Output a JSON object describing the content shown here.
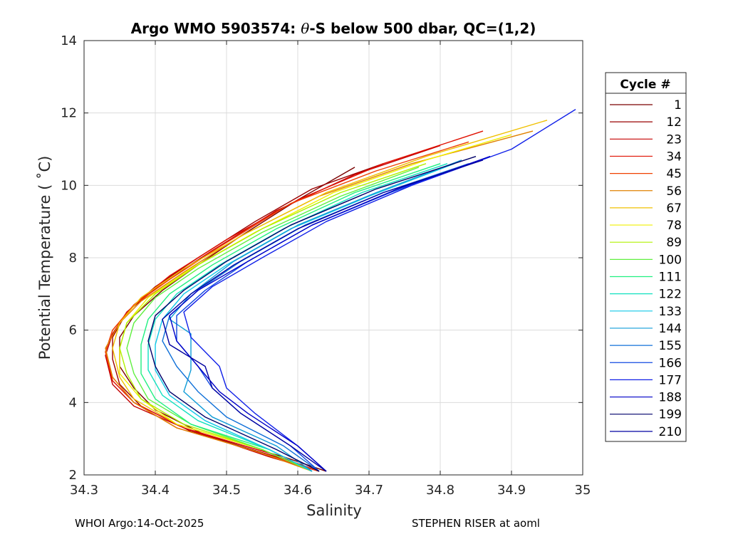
{
  "chart_data": {
    "type": "line",
    "title_prefix": "Argo WMO 5903574: ",
    "title_symbol": "θ",
    "title_suffix": "-S below 500 dbar,  QC=(1,2)",
    "xlabel": "Salinity",
    "ylabel": "Potential Temperature ( ˚C)",
    "xlim": [
      34.3,
      35
    ],
    "ylim": [
      2,
      14
    ],
    "xticks": [
      "34.3",
      "34.4",
      "34.5",
      "34.6",
      "34.7",
      "34.8",
      "34.9",
      "35"
    ],
    "yticks": [
      "2",
      "4",
      "6",
      "8",
      "10",
      "12",
      "14"
    ],
    "grid": true,
    "legend_title": "Cycle #",
    "legend_position": "right-outside",
    "series": [
      {
        "name": "1",
        "color": "#7a0000",
        "points": [
          [
            34.64,
            2.1
          ],
          [
            34.58,
            2.5
          ],
          [
            34.47,
            3.1
          ],
          [
            34.4,
            3.8
          ],
          [
            34.37,
            4.4
          ],
          [
            34.35,
            5.0
          ],
          [
            34.35,
            5.8
          ],
          [
            34.37,
            6.4
          ],
          [
            34.41,
            7.1
          ],
          [
            34.46,
            7.8
          ],
          [
            34.52,
            8.6
          ],
          [
            34.6,
            9.6
          ],
          [
            34.68,
            10.5
          ]
        ]
      },
      {
        "name": "12",
        "color": "#9a0000",
        "points": [
          [
            34.63,
            2.1
          ],
          [
            34.57,
            2.5
          ],
          [
            34.45,
            3.2
          ],
          [
            34.38,
            3.9
          ],
          [
            34.35,
            4.5
          ],
          [
            34.34,
            5.2
          ],
          [
            34.34,
            5.8
          ],
          [
            34.36,
            6.5
          ],
          [
            34.4,
            7.2
          ],
          [
            34.46,
            8.0
          ],
          [
            34.54,
            9.0
          ],
          [
            34.62,
            9.9
          ],
          [
            34.72,
            10.6
          ]
        ]
      },
      {
        "name": "23",
        "color": "#c40000",
        "points": [
          [
            34.63,
            2.1
          ],
          [
            34.56,
            2.5
          ],
          [
            34.44,
            3.3
          ],
          [
            34.37,
            3.9
          ],
          [
            34.34,
            4.5
          ],
          [
            34.33,
            5.3
          ],
          [
            34.34,
            5.9
          ],
          [
            34.36,
            6.5
          ],
          [
            34.41,
            7.3
          ],
          [
            34.48,
            8.2
          ],
          [
            34.57,
            9.3
          ],
          [
            34.68,
            10.3
          ],
          [
            34.8,
            11.1
          ]
        ]
      },
      {
        "name": "34",
        "color": "#e01000",
        "points": [
          [
            34.63,
            2.1
          ],
          [
            34.56,
            2.6
          ],
          [
            34.44,
            3.3
          ],
          [
            34.37,
            4.0
          ],
          [
            34.34,
            4.6
          ],
          [
            34.33,
            5.4
          ],
          [
            34.34,
            6.0
          ],
          [
            34.37,
            6.7
          ],
          [
            34.42,
            7.5
          ],
          [
            34.5,
            8.5
          ],
          [
            34.6,
            9.6
          ],
          [
            34.72,
            10.6
          ],
          [
            34.86,
            11.5
          ]
        ]
      },
      {
        "name": "45",
        "color": "#f04000",
        "points": [
          [
            34.63,
            2.1
          ],
          [
            34.55,
            2.6
          ],
          [
            34.43,
            3.3
          ],
          [
            34.37,
            4.0
          ],
          [
            34.34,
            4.7
          ],
          [
            34.33,
            5.4
          ],
          [
            34.34,
            6.0
          ],
          [
            34.37,
            6.7
          ],
          [
            34.42,
            7.4
          ],
          [
            34.49,
            8.3
          ],
          [
            34.59,
            9.5
          ],
          [
            34.71,
            10.4
          ],
          [
            34.84,
            11.2
          ]
        ]
      },
      {
        "name": "56",
        "color": "#e08000",
        "points": [
          [
            34.62,
            2.1
          ],
          [
            34.55,
            2.6
          ],
          [
            34.43,
            3.3
          ],
          [
            34.37,
            4.0
          ],
          [
            34.34,
            4.7
          ],
          [
            34.33,
            5.5
          ],
          [
            34.35,
            6.2
          ],
          [
            34.38,
            6.8
          ],
          [
            34.44,
            7.6
          ],
          [
            34.52,
            8.6
          ],
          [
            34.63,
            9.7
          ],
          [
            34.76,
            10.6
          ],
          [
            34.93,
            11.5
          ]
        ]
      },
      {
        "name": "67",
        "color": "#f0c000",
        "points": [
          [
            34.62,
            2.1
          ],
          [
            34.55,
            2.7
          ],
          [
            34.43,
            3.4
          ],
          [
            34.37,
            4.1
          ],
          [
            34.35,
            4.7
          ],
          [
            34.34,
            5.5
          ],
          [
            34.35,
            6.2
          ],
          [
            34.38,
            6.9
          ],
          [
            34.44,
            7.7
          ],
          [
            34.53,
            8.7
          ],
          [
            34.64,
            9.8
          ],
          [
            34.78,
            10.8
          ],
          [
            34.95,
            11.8
          ]
        ]
      },
      {
        "name": "78",
        "color": "#f0f000",
        "points": [
          [
            34.62,
            2.1
          ],
          [
            34.55,
            2.7
          ],
          [
            34.43,
            3.4
          ],
          [
            34.38,
            4.1
          ],
          [
            34.35,
            4.8
          ],
          [
            34.35,
            5.5
          ],
          [
            34.36,
            6.2
          ],
          [
            34.39,
            6.9
          ],
          [
            34.45,
            7.7
          ],
          [
            34.54,
            8.7
          ],
          [
            34.65,
            9.8
          ],
          [
            34.78,
            10.7
          ],
          [
            34.9,
            11.4
          ]
        ]
      },
      {
        "name": "89",
        "color": "#b0f000",
        "points": [
          [
            34.62,
            2.1
          ],
          [
            34.55,
            2.7
          ],
          [
            34.44,
            3.4
          ],
          [
            34.38,
            4.1
          ],
          [
            34.36,
            4.8
          ],
          [
            34.35,
            5.5
          ],
          [
            34.36,
            6.2
          ],
          [
            34.4,
            7.0
          ],
          [
            34.46,
            7.8
          ],
          [
            34.55,
            8.8
          ],
          [
            34.66,
            9.8
          ],
          [
            34.78,
            10.6
          ]
        ]
      },
      {
        "name": "100",
        "color": "#60f040",
        "points": [
          [
            34.62,
            2.1
          ],
          [
            34.55,
            2.7
          ],
          [
            34.45,
            3.4
          ],
          [
            34.39,
            4.1
          ],
          [
            34.37,
            4.8
          ],
          [
            34.36,
            5.5
          ],
          [
            34.37,
            6.2
          ],
          [
            34.4,
            6.9
          ],
          [
            34.46,
            7.7
          ],
          [
            34.55,
            8.7
          ],
          [
            34.66,
            9.7
          ],
          [
            34.77,
            10.5
          ]
        ]
      },
      {
        "name": "111",
        "color": "#20f080",
        "points": [
          [
            34.62,
            2.1
          ],
          [
            34.56,
            2.7
          ],
          [
            34.45,
            3.4
          ],
          [
            34.4,
            4.1
          ],
          [
            34.38,
            4.8
          ],
          [
            34.38,
            5.6
          ],
          [
            34.39,
            6.3
          ],
          [
            34.42,
            7.0
          ],
          [
            34.48,
            7.8
          ],
          [
            34.57,
            8.8
          ],
          [
            34.68,
            9.8
          ],
          [
            34.8,
            10.6
          ]
        ]
      },
      {
        "name": "122",
        "color": "#10e0c0",
        "points": [
          [
            34.62,
            2.1
          ],
          [
            34.56,
            2.7
          ],
          [
            34.46,
            3.5
          ],
          [
            34.41,
            4.2
          ],
          [
            34.39,
            4.9
          ],
          [
            34.39,
            5.6
          ],
          [
            34.4,
            6.3
          ],
          [
            34.43,
            7.0
          ],
          [
            34.49,
            7.8
          ],
          [
            34.58,
            8.8
          ],
          [
            34.69,
            9.8
          ],
          [
            34.81,
            10.6
          ]
        ]
      },
      {
        "name": "133",
        "color": "#10c8e8",
        "points": [
          [
            34.62,
            2.1
          ],
          [
            34.56,
            2.7
          ],
          [
            34.47,
            3.5
          ],
          [
            34.42,
            4.2
          ],
          [
            34.4,
            4.9
          ],
          [
            34.4,
            5.6
          ],
          [
            34.41,
            6.3
          ],
          [
            34.44,
            7.0
          ],
          [
            34.5,
            7.8
          ],
          [
            34.59,
            8.8
          ],
          [
            34.7,
            9.7
          ],
          [
            34.82,
            10.6
          ]
        ]
      },
      {
        "name": "144",
        "color": "#109cd8",
        "points": [
          [
            34.62,
            2.1
          ],
          [
            34.57,
            2.8
          ],
          [
            34.48,
            3.6
          ],
          [
            34.44,
            4.3
          ],
          [
            34.45,
            4.9
          ],
          [
            34.45,
            5.9
          ],
          [
            34.42,
            6.3
          ],
          [
            34.45,
            7.0
          ],
          [
            34.51,
            7.9
          ],
          [
            34.6,
            8.9
          ],
          [
            34.71,
            9.8
          ],
          [
            34.83,
            10.7
          ]
        ]
      },
      {
        "name": "155",
        "color": "#1070d8",
        "points": [
          [
            34.63,
            2.1
          ],
          [
            34.58,
            2.8
          ],
          [
            34.5,
            3.6
          ],
          [
            34.46,
            4.3
          ],
          [
            34.43,
            5.0
          ],
          [
            34.41,
            5.7
          ],
          [
            34.42,
            6.4
          ],
          [
            34.46,
            7.1
          ],
          [
            34.52,
            7.9
          ],
          [
            34.61,
            8.9
          ],
          [
            34.72,
            9.8
          ],
          [
            34.84,
            10.6
          ]
        ]
      },
      {
        "name": "166",
        "color": "#1048e0",
        "points": [
          [
            34.63,
            2.1
          ],
          [
            34.59,
            2.8
          ],
          [
            34.52,
            3.7
          ],
          [
            34.48,
            4.4
          ],
          [
            34.46,
            5.0
          ],
          [
            34.43,
            5.7
          ],
          [
            34.43,
            6.4
          ],
          [
            34.47,
            7.1
          ],
          [
            34.53,
            7.9
          ],
          [
            34.62,
            8.9
          ],
          [
            34.73,
            9.8
          ],
          [
            34.87,
            10.8
          ]
        ]
      },
      {
        "name": "177",
        "color": "#1020e8",
        "points": [
          [
            34.64,
            2.1
          ],
          [
            34.6,
            2.8
          ],
          [
            34.54,
            3.7
          ],
          [
            34.5,
            4.4
          ],
          [
            34.49,
            5.0
          ],
          [
            34.45,
            5.8
          ],
          [
            34.44,
            6.5
          ],
          [
            34.48,
            7.2
          ],
          [
            34.55,
            8.0
          ],
          [
            34.64,
            9.0
          ],
          [
            34.76,
            10.0
          ],
          [
            34.9,
            11.0
          ],
          [
            34.99,
            12.1
          ]
        ]
      },
      {
        "name": "188",
        "color": "#0000c8",
        "points": [
          [
            34.64,
            2.1
          ],
          [
            34.6,
            2.8
          ],
          [
            34.53,
            3.7
          ],
          [
            34.49,
            4.3
          ],
          [
            34.46,
            5.0
          ],
          [
            34.43,
            5.7
          ],
          [
            34.42,
            6.4
          ],
          [
            34.46,
            7.1
          ],
          [
            34.53,
            7.9
          ],
          [
            34.62,
            8.9
          ],
          [
            34.74,
            9.9
          ],
          [
            34.87,
            10.8
          ]
        ]
      },
      {
        "name": "199",
        "color": "#00006a",
        "points": [
          [
            34.63,
            2.1
          ],
          [
            34.57,
            2.7
          ],
          [
            34.47,
            3.6
          ],
          [
            34.42,
            4.3
          ],
          [
            34.4,
            5.0
          ],
          [
            34.39,
            5.7
          ],
          [
            34.4,
            6.4
          ],
          [
            34.44,
            7.1
          ],
          [
            34.5,
            7.9
          ],
          [
            34.59,
            8.9
          ],
          [
            34.71,
            9.9
          ],
          [
            34.85,
            10.8
          ]
        ]
      },
      {
        "name": "210",
        "color": "#0000a0",
        "points": [
          [
            34.64,
            2.1
          ],
          [
            34.59,
            2.8
          ],
          [
            34.52,
            3.7
          ],
          [
            34.48,
            4.4
          ],
          [
            34.47,
            5.0
          ],
          [
            34.42,
            5.6
          ],
          [
            34.41,
            6.3
          ],
          [
            34.45,
            7.0
          ],
          [
            34.51,
            7.8
          ],
          [
            34.6,
            8.8
          ],
          [
            34.72,
            9.8
          ],
          [
            34.86,
            10.7
          ]
        ]
      }
    ]
  },
  "footer": {
    "left": "WHOI Argo:14-Oct-2025",
    "right": "STEPHEN RISER at aoml"
  }
}
